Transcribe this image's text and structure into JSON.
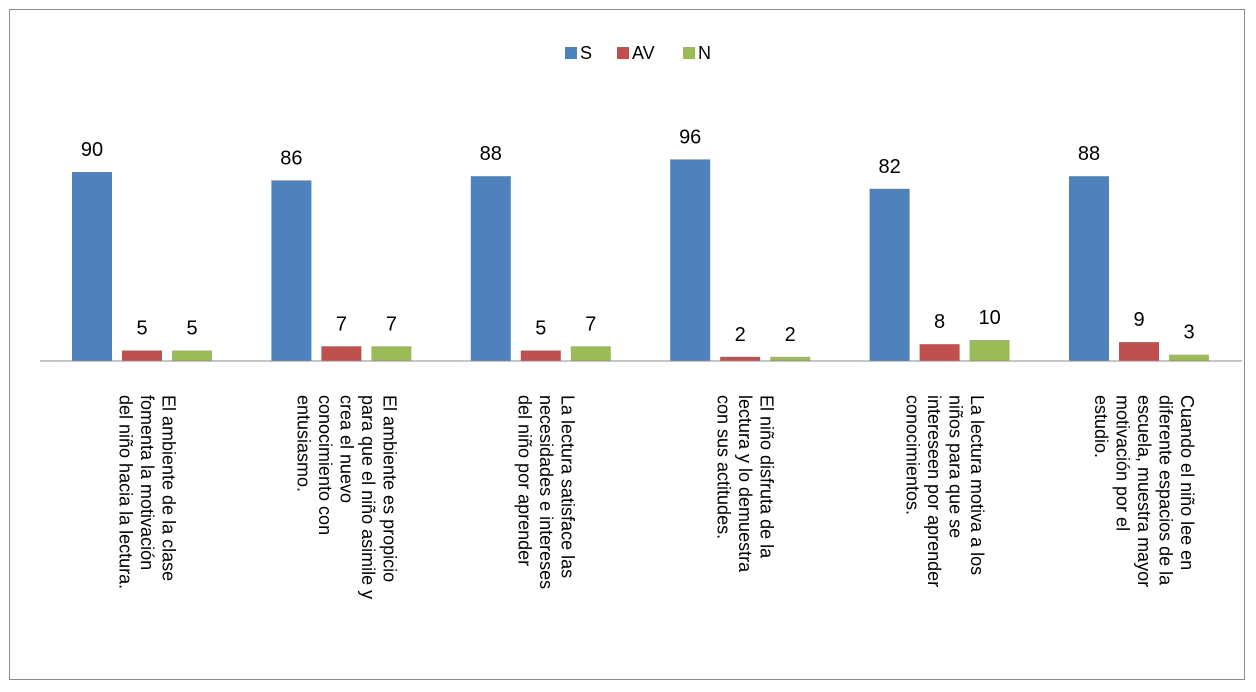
{
  "chart_data": {
    "type": "bar",
    "title": "",
    "xlabel": "",
    "ylabel": "",
    "ylim": [
      0,
      100
    ],
    "grid": false,
    "legend_position": "top-center",
    "categories": [
      [
        "El ambiente de la clase",
        "fomenta la motivación",
        "del niño hacia la lectura."
      ],
      [
        "El ambiente es propicio",
        "para que el niño asimile y",
        "crea el nuevo",
        "conocimiento con",
        "entusiasmo."
      ],
      [
        "La lectura satisface las",
        "necesidades e intereses",
        "del niño por aprender"
      ],
      [
        "El niño disfruta de la",
        "lectura y lo demuestra",
        "con sus actitudes."
      ],
      [
        "La lectura motiva a los",
        "niños para que se",
        "intereseen por aprender",
        "conocimientos."
      ],
      [
        "Cuando el niño  lee en",
        "diferente espacios de la",
        "escuela, muestra mayor",
        "motivación por el",
        "estudio."
      ]
    ],
    "series": [
      {
        "name": "S",
        "color": "#4F81BD",
        "values": [
          90,
          86,
          88,
          96,
          82,
          88
        ]
      },
      {
        "name": "AV",
        "color": "#C0504D",
        "values": [
          5,
          7,
          5,
          2,
          8,
          9
        ]
      },
      {
        "name": "N",
        "color": "#9BBB59",
        "values": [
          5,
          7,
          7,
          2,
          10,
          3
        ]
      }
    ]
  }
}
